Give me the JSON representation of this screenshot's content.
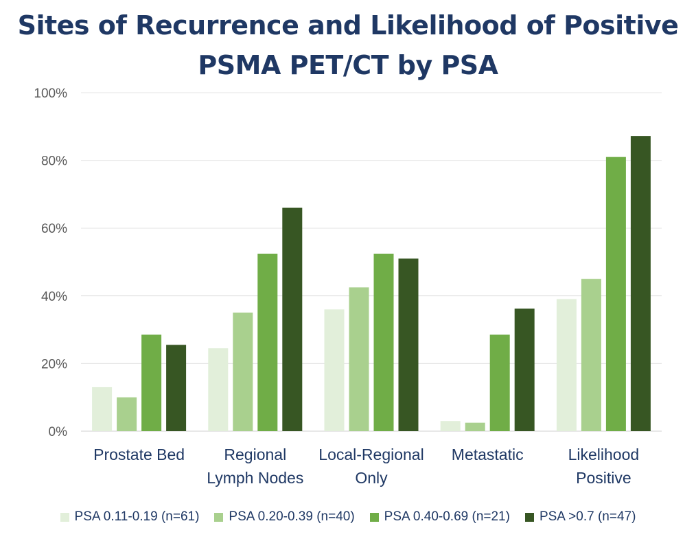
{
  "chart_data": {
    "type": "bar",
    "title": "Sites of Recurrence and Likelihood of Positive PSMA PET/CT by PSA",
    "title_lines": [
      "Sites of Recurrence and Likelihood of Positive",
      "PSMA PET/CT by PSA"
    ],
    "categories": [
      [
        "Prostate Bed"
      ],
      [
        "Regional",
        "Lymph Nodes"
      ],
      [
        "Local-Regional",
        "Only"
      ],
      [
        "Metastatic"
      ],
      [
        "Likelihood",
        "Positive"
      ]
    ],
    "series": [
      {
        "name": "PSA 0.11-0.19 (n=61)",
        "color": "#e2efda",
        "values": [
          13,
          24.5,
          36,
          3,
          39
        ]
      },
      {
        "name": "PSA 0.20-0.39 (n=40)",
        "color": "#a9d08e",
        "values": [
          10,
          35,
          42.5,
          2.5,
          45
        ]
      },
      {
        "name": "PSA 0.40-0.69 (n=21)",
        "color": "#70ad47",
        "values": [
          28.5,
          52.4,
          52.4,
          28.5,
          81
        ]
      },
      {
        "name": "PSA >0.7 (n=47)",
        "color": "#375623",
        "values": [
          25.5,
          66,
          51,
          36.2,
          87.2
        ]
      }
    ],
    "ylim": [
      0,
      100
    ],
    "yticks": [
      "0%",
      "20%",
      "40%",
      "60%",
      "80%",
      "100%"
    ],
    "grid": true,
    "legend": "bottom",
    "text_color": "#1f3864",
    "tick_color": "#595959"
  }
}
